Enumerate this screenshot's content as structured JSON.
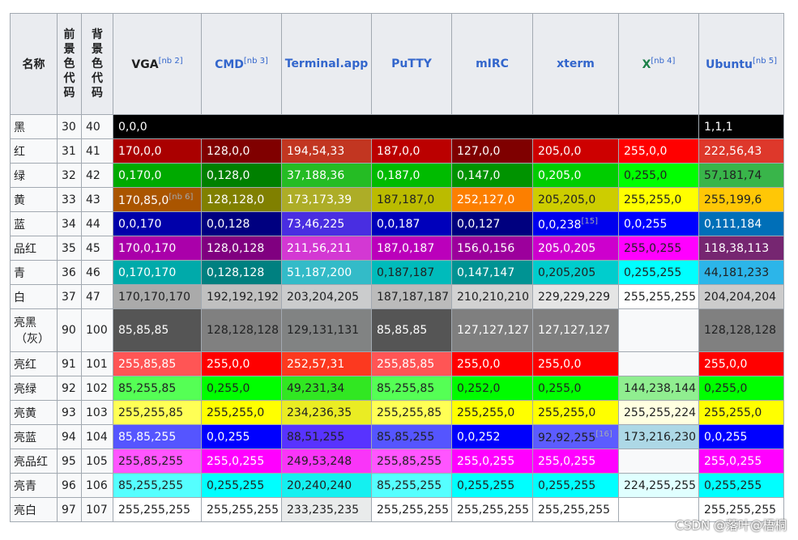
{
  "header": {
    "name": "名称",
    "fg_code": "前景色代码",
    "bg_code": "背景色代码",
    "columns": [
      {
        "label": "VGA",
        "sup": "[nb 2]",
        "style": "plain"
      },
      {
        "label": "CMD",
        "sup": "[nb 3]",
        "style": "link"
      },
      {
        "label": "Terminal.app",
        "sup": "",
        "style": "link"
      },
      {
        "label": "PuTTY",
        "sup": "",
        "style": "link"
      },
      {
        "label": "mIRC",
        "sup": "",
        "style": "link"
      },
      {
        "label": "xterm",
        "sup": "",
        "style": "link"
      },
      {
        "label": "X",
        "sup": "[nb 4]",
        "style": "x"
      },
      {
        "label": "Ubuntu",
        "sup": "[nb 5]",
        "style": "link"
      }
    ]
  },
  "rows": [
    {
      "name": "黑",
      "fg": "30",
      "bg": "40",
      "cells": [
        {
          "text": "0,0,0",
          "bg": "#000000",
          "fg": "#ffffff",
          "span": 7
        },
        {
          "text": "1,1,1",
          "bg": "#010101",
          "fg": "#ffffff"
        }
      ]
    },
    {
      "name": "红",
      "fg": "31",
      "bg": "41",
      "cells": [
        {
          "text": "170,0,0",
          "bg": "#aa0000",
          "fg": "#ffffff"
        },
        {
          "text": "128,0,0",
          "bg": "#800000",
          "fg": "#ffffff"
        },
        {
          "text": "194,54,33",
          "bg": "#c23621",
          "fg": "#ffffff"
        },
        {
          "text": "187,0,0",
          "bg": "#bb0000",
          "fg": "#ffffff"
        },
        {
          "text": "127,0,0",
          "bg": "#7f0000",
          "fg": "#ffffff"
        },
        {
          "text": "205,0,0",
          "bg": "#cd0000",
          "fg": "#ffffff"
        },
        {
          "text": "255,0,0",
          "bg": "#ff0000",
          "fg": "#ffffff"
        },
        {
          "text": "222,56,43",
          "bg": "#de382b",
          "fg": "#ffffff"
        }
      ]
    },
    {
      "name": "绿",
      "fg": "32",
      "bg": "42",
      "cells": [
        {
          "text": "0,170,0",
          "bg": "#00aa00",
          "fg": "#ffffff"
        },
        {
          "text": "0,128,0",
          "bg": "#008000",
          "fg": "#ffffff"
        },
        {
          "text": "37,188,36",
          "bg": "#25bc24",
          "fg": "#ffffff"
        },
        {
          "text": "0,187,0",
          "bg": "#00bb00",
          "fg": "#ffffff"
        },
        {
          "text": "0,147,0",
          "bg": "#009300",
          "fg": "#ffffff"
        },
        {
          "text": "0,205,0",
          "bg": "#00cd00",
          "fg": "#ffffff"
        },
        {
          "text": "0,255,0",
          "bg": "#00ff00",
          "fg": "#202122"
        },
        {
          "text": "57,181,74",
          "bg": "#39b54a",
          "fg": "#202122"
        }
      ]
    },
    {
      "name": "黄",
      "fg": "33",
      "bg": "43",
      "cells": [
        {
          "text": "170,85,0",
          "sup": "[nb 6]",
          "bg": "#aa5500",
          "fg": "#ffffff"
        },
        {
          "text": "128,128,0",
          "bg": "#808000",
          "fg": "#ffffff"
        },
        {
          "text": "173,173,39",
          "bg": "#adad27",
          "fg": "#ffffff"
        },
        {
          "text": "187,187,0",
          "bg": "#bbbb00",
          "fg": "#202122"
        },
        {
          "text": "252,127,0",
          "bg": "#fc7f00",
          "fg": "#ffffff"
        },
        {
          "text": "205,205,0",
          "bg": "#cdcd00",
          "fg": "#202122"
        },
        {
          "text": "255,255,0",
          "bg": "#ffff00",
          "fg": "#202122"
        },
        {
          "text": "255,199,6",
          "bg": "#ffc706",
          "fg": "#202122"
        }
      ]
    },
    {
      "name": "蓝",
      "fg": "34",
      "bg": "44",
      "cells": [
        {
          "text": "0,0,170",
          "bg": "#0000aa",
          "fg": "#ffffff"
        },
        {
          "text": "0,0,128",
          "bg": "#000080",
          "fg": "#ffffff"
        },
        {
          "text": "73,46,225",
          "bg": "#492ee1",
          "fg": "#ffffff"
        },
        {
          "text": "0,0,187",
          "bg": "#0000bb",
          "fg": "#ffffff"
        },
        {
          "text": "0,0,127",
          "bg": "#00007f",
          "fg": "#ffffff"
        },
        {
          "text": "0,0,238",
          "sup": "[15]",
          "bg": "#0000ee",
          "fg": "#ffffff"
        },
        {
          "text": "0,0,255",
          "bg": "#0000ff",
          "fg": "#ffffff"
        },
        {
          "text": "0,111,184",
          "bg": "#006fb8",
          "fg": "#ffffff"
        }
      ]
    },
    {
      "name": "品红",
      "fg": "35",
      "bg": "45",
      "cells": [
        {
          "text": "170,0,170",
          "bg": "#aa00aa",
          "fg": "#ffffff"
        },
        {
          "text": "128,0,128",
          "bg": "#800080",
          "fg": "#ffffff"
        },
        {
          "text": "211,56,211",
          "bg": "#d338d3",
          "fg": "#ffffff"
        },
        {
          "text": "187,0,187",
          "bg": "#bb00bb",
          "fg": "#ffffff"
        },
        {
          "text": "156,0,156",
          "bg": "#9c009c",
          "fg": "#ffffff"
        },
        {
          "text": "205,0,205",
          "bg": "#cd00cd",
          "fg": "#ffffff"
        },
        {
          "text": "255,0,255",
          "bg": "#ff00ff",
          "fg": "#202122"
        },
        {
          "text": "118,38,113",
          "bg": "#762671",
          "fg": "#ffffff"
        }
      ]
    },
    {
      "name": "青",
      "fg": "36",
      "bg": "46",
      "cells": [
        {
          "text": "0,170,170",
          "bg": "#00aaaa",
          "fg": "#ffffff"
        },
        {
          "text": "0,128,128",
          "bg": "#008080",
          "fg": "#ffffff"
        },
        {
          "text": "51,187,200",
          "bg": "#33bbc8",
          "fg": "#ffffff"
        },
        {
          "text": "0,187,187",
          "bg": "#00bbbb",
          "fg": "#202122"
        },
        {
          "text": "0,147,147",
          "bg": "#009393",
          "fg": "#ffffff"
        },
        {
          "text": "0,205,205",
          "bg": "#00cdcd",
          "fg": "#202122"
        },
        {
          "text": "0,255,255",
          "bg": "#00ffff",
          "fg": "#202122"
        },
        {
          "text": "44,181,233",
          "bg": "#2cb5e9",
          "fg": "#202122"
        }
      ]
    },
    {
      "name": "白",
      "fg": "37",
      "bg": "47",
      "cells": [
        {
          "text": "170,170,170",
          "bg": "#aaaaaa",
          "fg": "#202122"
        },
        {
          "text": "192,192,192",
          "bg": "#c0c0c0",
          "fg": "#202122"
        },
        {
          "text": "203,204,205",
          "bg": "#cbcccd",
          "fg": "#202122"
        },
        {
          "text": "187,187,187",
          "bg": "#bbbbbb",
          "fg": "#202122"
        },
        {
          "text": "210,210,210",
          "bg": "#d2d2d2",
          "fg": "#202122"
        },
        {
          "text": "229,229,229",
          "bg": "#e5e5e5",
          "fg": "#202122"
        },
        {
          "text": "255,255,255",
          "bg": "#ffffff",
          "fg": "#202122"
        },
        {
          "text": "204,204,204",
          "bg": "#cccccc",
          "fg": "#202122"
        }
      ]
    },
    {
      "name": "亮黑",
      "name2": "（灰）",
      "fg": "90",
      "bg": "100",
      "tall": true,
      "cells": [
        {
          "text": "85,85,85",
          "bg": "#555555",
          "fg": "#ffffff"
        },
        {
          "text": "128,128,128",
          "bg": "#808080",
          "fg": "#202122"
        },
        {
          "text": "129,131,131",
          "bg": "#818383",
          "fg": "#202122"
        },
        {
          "text": "85,85,85",
          "bg": "#555555",
          "fg": "#ffffff"
        },
        {
          "text": "127,127,127",
          "bg": "#7f7f7f",
          "fg": "#ffffff"
        },
        {
          "text": "127,127,127",
          "bg": "#7f7f7f",
          "fg": "#ffffff"
        },
        {
          "text": "",
          "bg": "#f8f9fa",
          "fg": "#202122"
        },
        {
          "text": "128,128,128",
          "bg": "#808080",
          "fg": "#202122"
        }
      ]
    },
    {
      "name": "亮红",
      "fg": "91",
      "bg": "101",
      "cells": [
        {
          "text": "255,85,85",
          "bg": "#ff5555",
          "fg": "#ffffff"
        },
        {
          "text": "255,0,0",
          "bg": "#ff0000",
          "fg": "#ffffff"
        },
        {
          "text": "252,57,31",
          "bg": "#fc391f",
          "fg": "#ffffff"
        },
        {
          "text": "255,85,85",
          "bg": "#ff5555",
          "fg": "#ffffff"
        },
        {
          "text": "255,0,0",
          "bg": "#ff0000",
          "fg": "#ffffff"
        },
        {
          "text": "255,0,0",
          "bg": "#ff0000",
          "fg": "#ffffff"
        },
        {
          "text": "",
          "bg": "#f8f9fa",
          "fg": "#202122"
        },
        {
          "text": "255,0,0",
          "bg": "#ff0000",
          "fg": "#ffffff"
        }
      ]
    },
    {
      "name": "亮绿",
      "fg": "92",
      "bg": "102",
      "cells": [
        {
          "text": "85,255,85",
          "bg": "#55ff55",
          "fg": "#202122"
        },
        {
          "text": "0,255,0",
          "bg": "#00ff00",
          "fg": "#202122"
        },
        {
          "text": "49,231,34",
          "bg": "#31e722",
          "fg": "#202122"
        },
        {
          "text": "85,255,85",
          "bg": "#55ff55",
          "fg": "#202122"
        },
        {
          "text": "0,252,0",
          "bg": "#00fc00",
          "fg": "#202122"
        },
        {
          "text": "0,255,0",
          "bg": "#00ff00",
          "fg": "#202122"
        },
        {
          "text": "144,238,144",
          "bg": "#90ee90",
          "fg": "#202122"
        },
        {
          "text": "0,255,0",
          "bg": "#00ff00",
          "fg": "#202122"
        }
      ]
    },
    {
      "name": "亮黄",
      "fg": "93",
      "bg": "103",
      "cells": [
        {
          "text": "255,255,85",
          "bg": "#ffff55",
          "fg": "#202122"
        },
        {
          "text": "255,255,0",
          "bg": "#ffff00",
          "fg": "#202122"
        },
        {
          "text": "234,236,35",
          "bg": "#eaec23",
          "fg": "#202122"
        },
        {
          "text": "255,255,85",
          "bg": "#ffff55",
          "fg": "#202122"
        },
        {
          "text": "255,255,0",
          "bg": "#ffff00",
          "fg": "#202122"
        },
        {
          "text": "255,255,0",
          "bg": "#ffff00",
          "fg": "#202122"
        },
        {
          "text": "255,255,224",
          "bg": "#ffffe0",
          "fg": "#202122"
        },
        {
          "text": "255,255,0",
          "bg": "#ffff00",
          "fg": "#202122"
        }
      ]
    },
    {
      "name": "亮蓝",
      "fg": "94",
      "bg": "104",
      "cells": [
        {
          "text": "85,85,255",
          "bg": "#5555ff",
          "fg": "#ffffff"
        },
        {
          "text": "0,0,255",
          "bg": "#0000ff",
          "fg": "#ffffff"
        },
        {
          "text": "88,51,255",
          "bg": "#5833ff",
          "fg": "#202122"
        },
        {
          "text": "85,85,255",
          "bg": "#5555ff",
          "fg": "#202122"
        },
        {
          "text": "0,0,252",
          "bg": "#0000fc",
          "fg": "#ffffff"
        },
        {
          "text": "92,92,255",
          "sup": "[16]",
          "bg": "#5c5cff",
          "fg": "#202122"
        },
        {
          "text": "173,216,230",
          "bg": "#add8e6",
          "fg": "#202122"
        },
        {
          "text": "0,0,255",
          "bg": "#0000ff",
          "fg": "#ffffff"
        }
      ]
    },
    {
      "name": "亮品红",
      "fg": "95",
      "bg": "105",
      "cells": [
        {
          "text": "255,85,255",
          "bg": "#ff55ff",
          "fg": "#202122"
        },
        {
          "text": "255,0,255",
          "bg": "#ff00ff",
          "fg": "#ffffff"
        },
        {
          "text": "249,53,248",
          "bg": "#f935f8",
          "fg": "#202122"
        },
        {
          "text": "255,85,255",
          "bg": "#ff55ff",
          "fg": "#202122"
        },
        {
          "text": "255,0,255",
          "bg": "#ff00ff",
          "fg": "#ffffff"
        },
        {
          "text": "255,0,255",
          "bg": "#ff00ff",
          "fg": "#ffffff"
        },
        {
          "text": "",
          "bg": "#f8f9fa",
          "fg": "#202122"
        },
        {
          "text": "255,0,255",
          "bg": "#ff00ff",
          "fg": "#ffffff"
        }
      ]
    },
    {
      "name": "亮青",
      "fg": "96",
      "bg": "106",
      "cells": [
        {
          "text": "85,255,255",
          "bg": "#55ffff",
          "fg": "#202122"
        },
        {
          "text": "0,255,255",
          "bg": "#00ffff",
          "fg": "#202122"
        },
        {
          "text": "20,240,240",
          "bg": "#14f0f0",
          "fg": "#202122"
        },
        {
          "text": "85,255,255",
          "bg": "#55ffff",
          "fg": "#202122"
        },
        {
          "text": "0,255,255",
          "bg": "#00ffff",
          "fg": "#202122"
        },
        {
          "text": "0,255,255",
          "bg": "#00ffff",
          "fg": "#202122"
        },
        {
          "text": "224,255,255",
          "bg": "#e0ffff",
          "fg": "#202122"
        },
        {
          "text": "0,255,255",
          "bg": "#00ffff",
          "fg": "#202122"
        }
      ]
    },
    {
      "name": "亮白",
      "fg": "97",
      "bg": "107",
      "cells": [
        {
          "text": "255,255,255",
          "bg": "#ffffff",
          "fg": "#202122"
        },
        {
          "text": "255,255,255",
          "bg": "#ffffff",
          "fg": "#202122"
        },
        {
          "text": "233,235,235",
          "bg": "#e9ebeb",
          "fg": "#202122"
        },
        {
          "text": "255,255,255",
          "bg": "#ffffff",
          "fg": "#202122"
        },
        {
          "text": "255,255,255",
          "bg": "#ffffff",
          "fg": "#202122"
        },
        {
          "text": "255,255,255",
          "bg": "#ffffff",
          "fg": "#202122"
        },
        {
          "text": "",
          "bg": "#ffffff",
          "fg": "#202122"
        },
        {
          "text": "255,255,255",
          "bg": "#ffffff",
          "fg": "#202122"
        }
      ]
    }
  ],
  "watermark": "CSDN @落叶@梧桐"
}
